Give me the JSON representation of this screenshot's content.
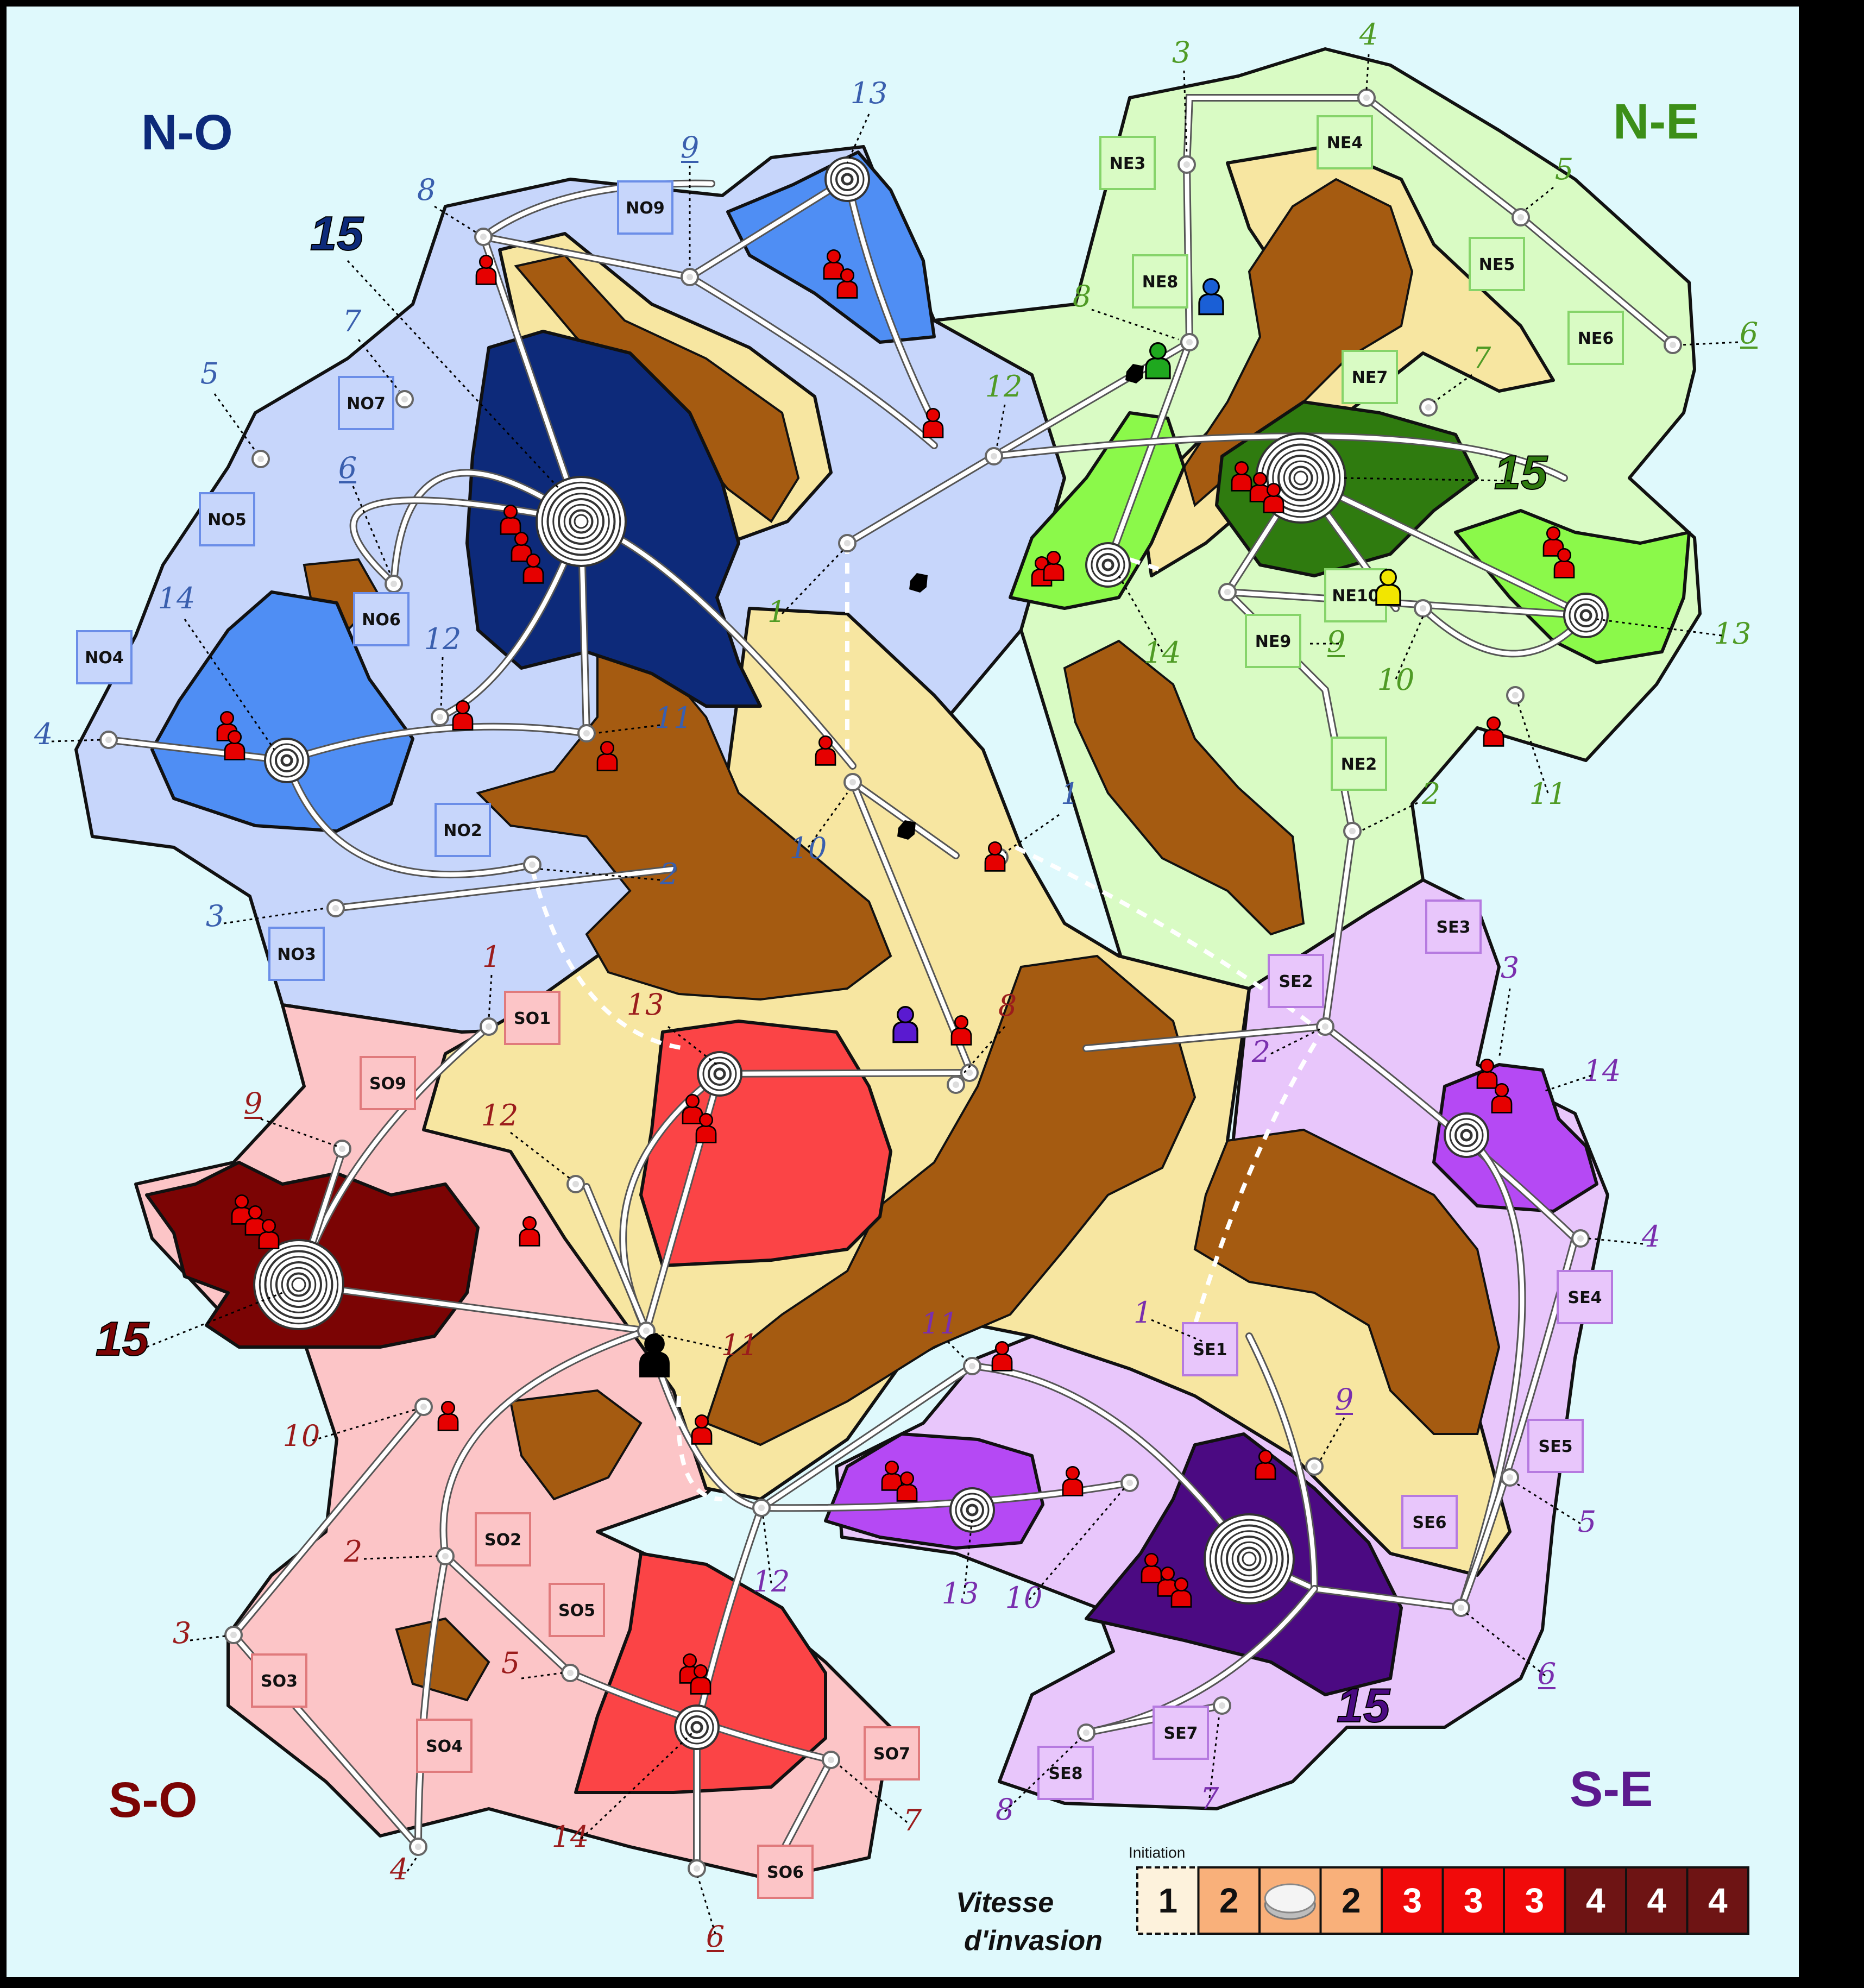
{
  "board": {
    "colors": {
      "sea": "#dff9fc",
      "frame": "#000000",
      "sand": "#f7e6a1",
      "mountain": "#a55b11",
      "no_light": "#c7d6fb",
      "no_mid": "#4f8ef4",
      "no_dark": "#0d2a7a",
      "ne_light": "#d9fbc4",
      "ne_mid": "#8bf94a",
      "ne_dark": "#2f7b0f",
      "se_light": "#e8c6fb",
      "se_mid": "#b549f4",
      "se_dark": "#4b0a82",
      "so_light": "#fcc5c7",
      "so_mid": "#fb4446",
      "so_dark": "#7b0404",
      "pawn_red": "#e60000"
    },
    "quadrants": [
      {
        "id": "no",
        "label": "N-O",
        "color": "#0d2a7a"
      },
      {
        "id": "ne",
        "label": "N-E",
        "color": "#3c8f18"
      },
      {
        "id": "so",
        "label": "S-O",
        "color": "#7b0404"
      },
      {
        "id": "se",
        "label": "S-E",
        "color": "#5c1a8e"
      }
    ],
    "zones": [
      {
        "id": "NO9",
        "group": "no"
      },
      {
        "id": "NO7",
        "group": "no"
      },
      {
        "id": "NO5",
        "group": "no"
      },
      {
        "id": "NO6",
        "group": "no"
      },
      {
        "id": "NO4",
        "group": "no"
      },
      {
        "id": "NO2",
        "group": "no"
      },
      {
        "id": "NO3",
        "group": "no"
      },
      {
        "id": "NE3",
        "group": "ne"
      },
      {
        "id": "NE4",
        "group": "ne"
      },
      {
        "id": "NE5",
        "group": "ne"
      },
      {
        "id": "NE8",
        "group": "ne"
      },
      {
        "id": "NE6",
        "group": "ne"
      },
      {
        "id": "NE7",
        "group": "ne"
      },
      {
        "id": "NE10",
        "group": "ne"
      },
      {
        "id": "NE9",
        "group": "ne"
      },
      {
        "id": "NE2",
        "group": "ne"
      },
      {
        "id": "SE3",
        "group": "se"
      },
      {
        "id": "SE2",
        "group": "se"
      },
      {
        "id": "SE4",
        "group": "se"
      },
      {
        "id": "SE1",
        "group": "se"
      },
      {
        "id": "SE5",
        "group": "se"
      },
      {
        "id": "SE6",
        "group": "se"
      },
      {
        "id": "SE7",
        "group": "se"
      },
      {
        "id": "SE8",
        "group": "se"
      },
      {
        "id": "SO1",
        "group": "so"
      },
      {
        "id": "SO9",
        "group": "so"
      },
      {
        "id": "SO2",
        "group": "so"
      },
      {
        "id": "SO5",
        "group": "so"
      },
      {
        "id": "SO3",
        "group": "so"
      },
      {
        "id": "SO4",
        "group": "so"
      },
      {
        "id": "SO7",
        "group": "so"
      },
      {
        "id": "SO6",
        "group": "so"
      }
    ],
    "node_numbers": [
      {
        "text": "13",
        "group": "no"
      },
      {
        "text": "9",
        "group": "no",
        "underline": true
      },
      {
        "text": "8",
        "group": "no"
      },
      {
        "text": "15",
        "group": "no",
        "big": true
      },
      {
        "text": "7",
        "group": "no"
      },
      {
        "text": "5",
        "group": "no"
      },
      {
        "text": "6",
        "group": "no",
        "underline": true
      },
      {
        "text": "14",
        "group": "no"
      },
      {
        "text": "12",
        "group": "no"
      },
      {
        "text": "4",
        "group": "no"
      },
      {
        "text": "11",
        "group": "no"
      },
      {
        "text": "10",
        "group": "no"
      },
      {
        "text": "1",
        "group": "no"
      },
      {
        "text": "2",
        "group": "no"
      },
      {
        "text": "3",
        "group": "no"
      },
      {
        "text": "3",
        "group": "ne"
      },
      {
        "text": "4",
        "group": "ne"
      },
      {
        "text": "5",
        "group": "ne"
      },
      {
        "text": "8",
        "group": "ne"
      },
      {
        "text": "6",
        "group": "ne",
        "underline": true
      },
      {
        "text": "12",
        "group": "ne"
      },
      {
        "text": "7",
        "group": "ne"
      },
      {
        "text": "15",
        "group": "ne",
        "big": true
      },
      {
        "text": "1",
        "group": "ne"
      },
      {
        "text": "14",
        "group": "ne"
      },
      {
        "text": "9",
        "group": "ne",
        "underline": true
      },
      {
        "text": "10",
        "group": "ne"
      },
      {
        "text": "13",
        "group": "ne"
      },
      {
        "text": "11",
        "group": "ne"
      },
      {
        "text": "2",
        "group": "ne"
      },
      {
        "text": "3",
        "group": "se"
      },
      {
        "text": "14",
        "group": "se"
      },
      {
        "text": "2",
        "group": "se"
      },
      {
        "text": "4",
        "group": "se"
      },
      {
        "text": "1",
        "group": "se"
      },
      {
        "text": "11",
        "group": "se"
      },
      {
        "text": "9",
        "group": "se",
        "underline": true
      },
      {
        "text": "5",
        "group": "se"
      },
      {
        "text": "13",
        "group": "se"
      },
      {
        "text": "10",
        "group": "se"
      },
      {
        "text": "12",
        "group": "se"
      },
      {
        "text": "6",
        "group": "se",
        "underline": true
      },
      {
        "text": "15",
        "group": "se",
        "big": true
      },
      {
        "text": "7",
        "group": "se"
      },
      {
        "text": "8",
        "group": "se"
      },
      {
        "text": "1",
        "group": "so"
      },
      {
        "text": "13",
        "group": "so"
      },
      {
        "text": "8",
        "group": "so"
      },
      {
        "text": "9",
        "group": "so",
        "underline": true
      },
      {
        "text": "12",
        "group": "so"
      },
      {
        "text": "15",
        "group": "so",
        "big": true
      },
      {
        "text": "11",
        "group": "so"
      },
      {
        "text": "10",
        "group": "so"
      },
      {
        "text": "2",
        "group": "so"
      },
      {
        "text": "3",
        "group": "so"
      },
      {
        "text": "5",
        "group": "so"
      },
      {
        "text": "14",
        "group": "so"
      },
      {
        "text": "7",
        "group": "so"
      },
      {
        "text": "4",
        "group": "so"
      },
      {
        "text": "6",
        "group": "so",
        "underline": true
      }
    ],
    "pawn_colors": {
      "blue": "#1a5fd6",
      "green": "#1fa81f",
      "yellow": "#f2e600",
      "purple": "#5a1ad0",
      "black": "#000000"
    }
  },
  "invasion_track": {
    "label_line1": "Vitesse",
    "label_line2": "d'invasion",
    "initiation_label": "Initiation",
    "cells": [
      {
        "value": "1",
        "bg": "#fdf2dc",
        "fg": "#111111",
        "initiation": true
      },
      {
        "value": "2",
        "bg": "#f9b07a",
        "fg": "#111111"
      },
      {
        "value": "",
        "bg": "#f9b07a",
        "fg": "#111111",
        "token": true
      },
      {
        "value": "2",
        "bg": "#f9b07a",
        "fg": "#111111"
      },
      {
        "value": "3",
        "bg": "#f10a0a",
        "fg": "#ffffff"
      },
      {
        "value": "3",
        "bg": "#f10a0a",
        "fg": "#ffffff"
      },
      {
        "value": "3",
        "bg": "#f10a0a",
        "fg": "#ffffff"
      },
      {
        "value": "4",
        "bg": "#6e1414",
        "fg": "#ffffff"
      },
      {
        "value": "4",
        "bg": "#6e1414",
        "fg": "#ffffff"
      },
      {
        "value": "4",
        "bg": "#6e1414",
        "fg": "#ffffff"
      }
    ]
  }
}
